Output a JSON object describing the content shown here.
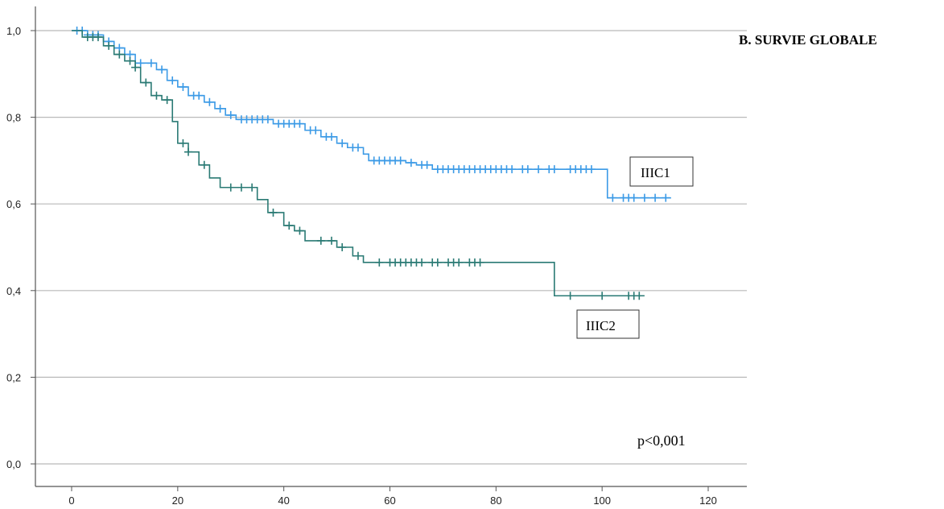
{
  "chart_data": {
    "type": "line",
    "title": "B. SURVIE GLOBALE",
    "xlabel": "",
    "ylabel": "",
    "xlim": [
      0,
      120
    ],
    "ylim": [
      0.0,
      1.0
    ],
    "x_ticks": [
      0,
      20,
      40,
      60,
      80,
      100,
      120
    ],
    "y_ticks": [
      "0,0",
      "0,2",
      "0,4",
      "0,6",
      "0,8",
      "1,0"
    ],
    "y_tick_values": [
      0.0,
      0.2,
      0.4,
      0.6,
      0.8,
      1.0
    ],
    "grid": "horizontal",
    "annotation": "p<0,001",
    "series": [
      {
        "name": "IIIC1",
        "color": "#3b9ae6",
        "steps": [
          [
            0,
            1.0
          ],
          [
            3,
            0.99
          ],
          [
            6,
            0.975
          ],
          [
            8,
            0.96
          ],
          [
            10,
            0.945
          ],
          [
            12,
            0.925
          ],
          [
            16,
            0.91
          ],
          [
            18,
            0.885
          ],
          [
            20,
            0.87
          ],
          [
            22,
            0.85
          ],
          [
            25,
            0.835
          ],
          [
            27,
            0.82
          ],
          [
            29,
            0.805
          ],
          [
            31,
            0.795
          ],
          [
            38,
            0.785
          ],
          [
            44,
            0.77
          ],
          [
            47,
            0.755
          ],
          [
            50,
            0.74
          ],
          [
            52,
            0.73
          ],
          [
            55,
            0.715
          ],
          [
            56,
            0.7
          ],
          [
            63,
            0.695
          ],
          [
            65,
            0.69
          ],
          [
            68,
            0.68
          ],
          [
            101,
            0.614
          ],
          [
            113,
            0.614
          ]
        ],
        "censors": [
          1,
          2,
          3,
          4,
          5,
          7,
          9,
          11,
          13,
          15,
          17,
          19,
          21,
          23,
          24,
          26,
          28,
          30,
          32,
          33,
          34,
          35,
          36,
          37,
          39,
          40,
          41,
          42,
          43,
          45,
          46,
          48,
          49,
          51,
          53,
          54,
          57,
          58,
          59,
          60,
          61,
          62,
          64,
          66,
          67,
          69,
          70,
          71,
          72,
          73,
          74,
          75,
          76,
          77,
          78,
          79,
          80,
          81,
          82,
          83,
          85,
          86,
          88,
          90,
          91,
          94,
          95,
          96,
          97,
          98,
          102,
          104,
          105,
          106,
          108,
          110,
          112
        ]
      },
      {
        "name": "IIIC2",
        "color": "#2a7a74",
        "steps": [
          [
            0,
            1.0
          ],
          [
            2,
            0.985
          ],
          [
            6,
            0.965
          ],
          [
            8,
            0.945
          ],
          [
            10,
            0.93
          ],
          [
            12,
            0.915
          ],
          [
            13,
            0.88
          ],
          [
            15,
            0.85
          ],
          [
            17,
            0.84
          ],
          [
            19,
            0.79
          ],
          [
            20,
            0.74
          ],
          [
            22,
            0.72
          ],
          [
            24,
            0.69
          ],
          [
            26,
            0.66
          ],
          [
            28,
            0.638
          ],
          [
            35,
            0.61
          ],
          [
            37,
            0.58
          ],
          [
            40,
            0.55
          ],
          [
            42,
            0.538
          ],
          [
            44,
            0.515
          ],
          [
            50,
            0.5
          ],
          [
            53,
            0.48
          ],
          [
            55,
            0.465
          ],
          [
            91,
            0.388
          ],
          [
            108,
            0.388
          ]
        ],
        "censors": [
          3,
          4,
          5,
          7,
          9,
          11,
          12,
          14,
          16,
          18,
          21,
          22,
          25,
          30,
          32,
          34,
          38,
          41,
          43,
          47,
          49,
          51,
          54,
          58,
          60,
          61,
          62,
          63,
          64,
          65,
          66,
          68,
          69,
          71,
          72,
          73,
          75,
          76,
          77,
          94,
          100,
          105,
          106,
          107
        ]
      }
    ],
    "labels": {
      "iiic1": "IIIC1",
      "iiic2": "IIIC2"
    }
  }
}
